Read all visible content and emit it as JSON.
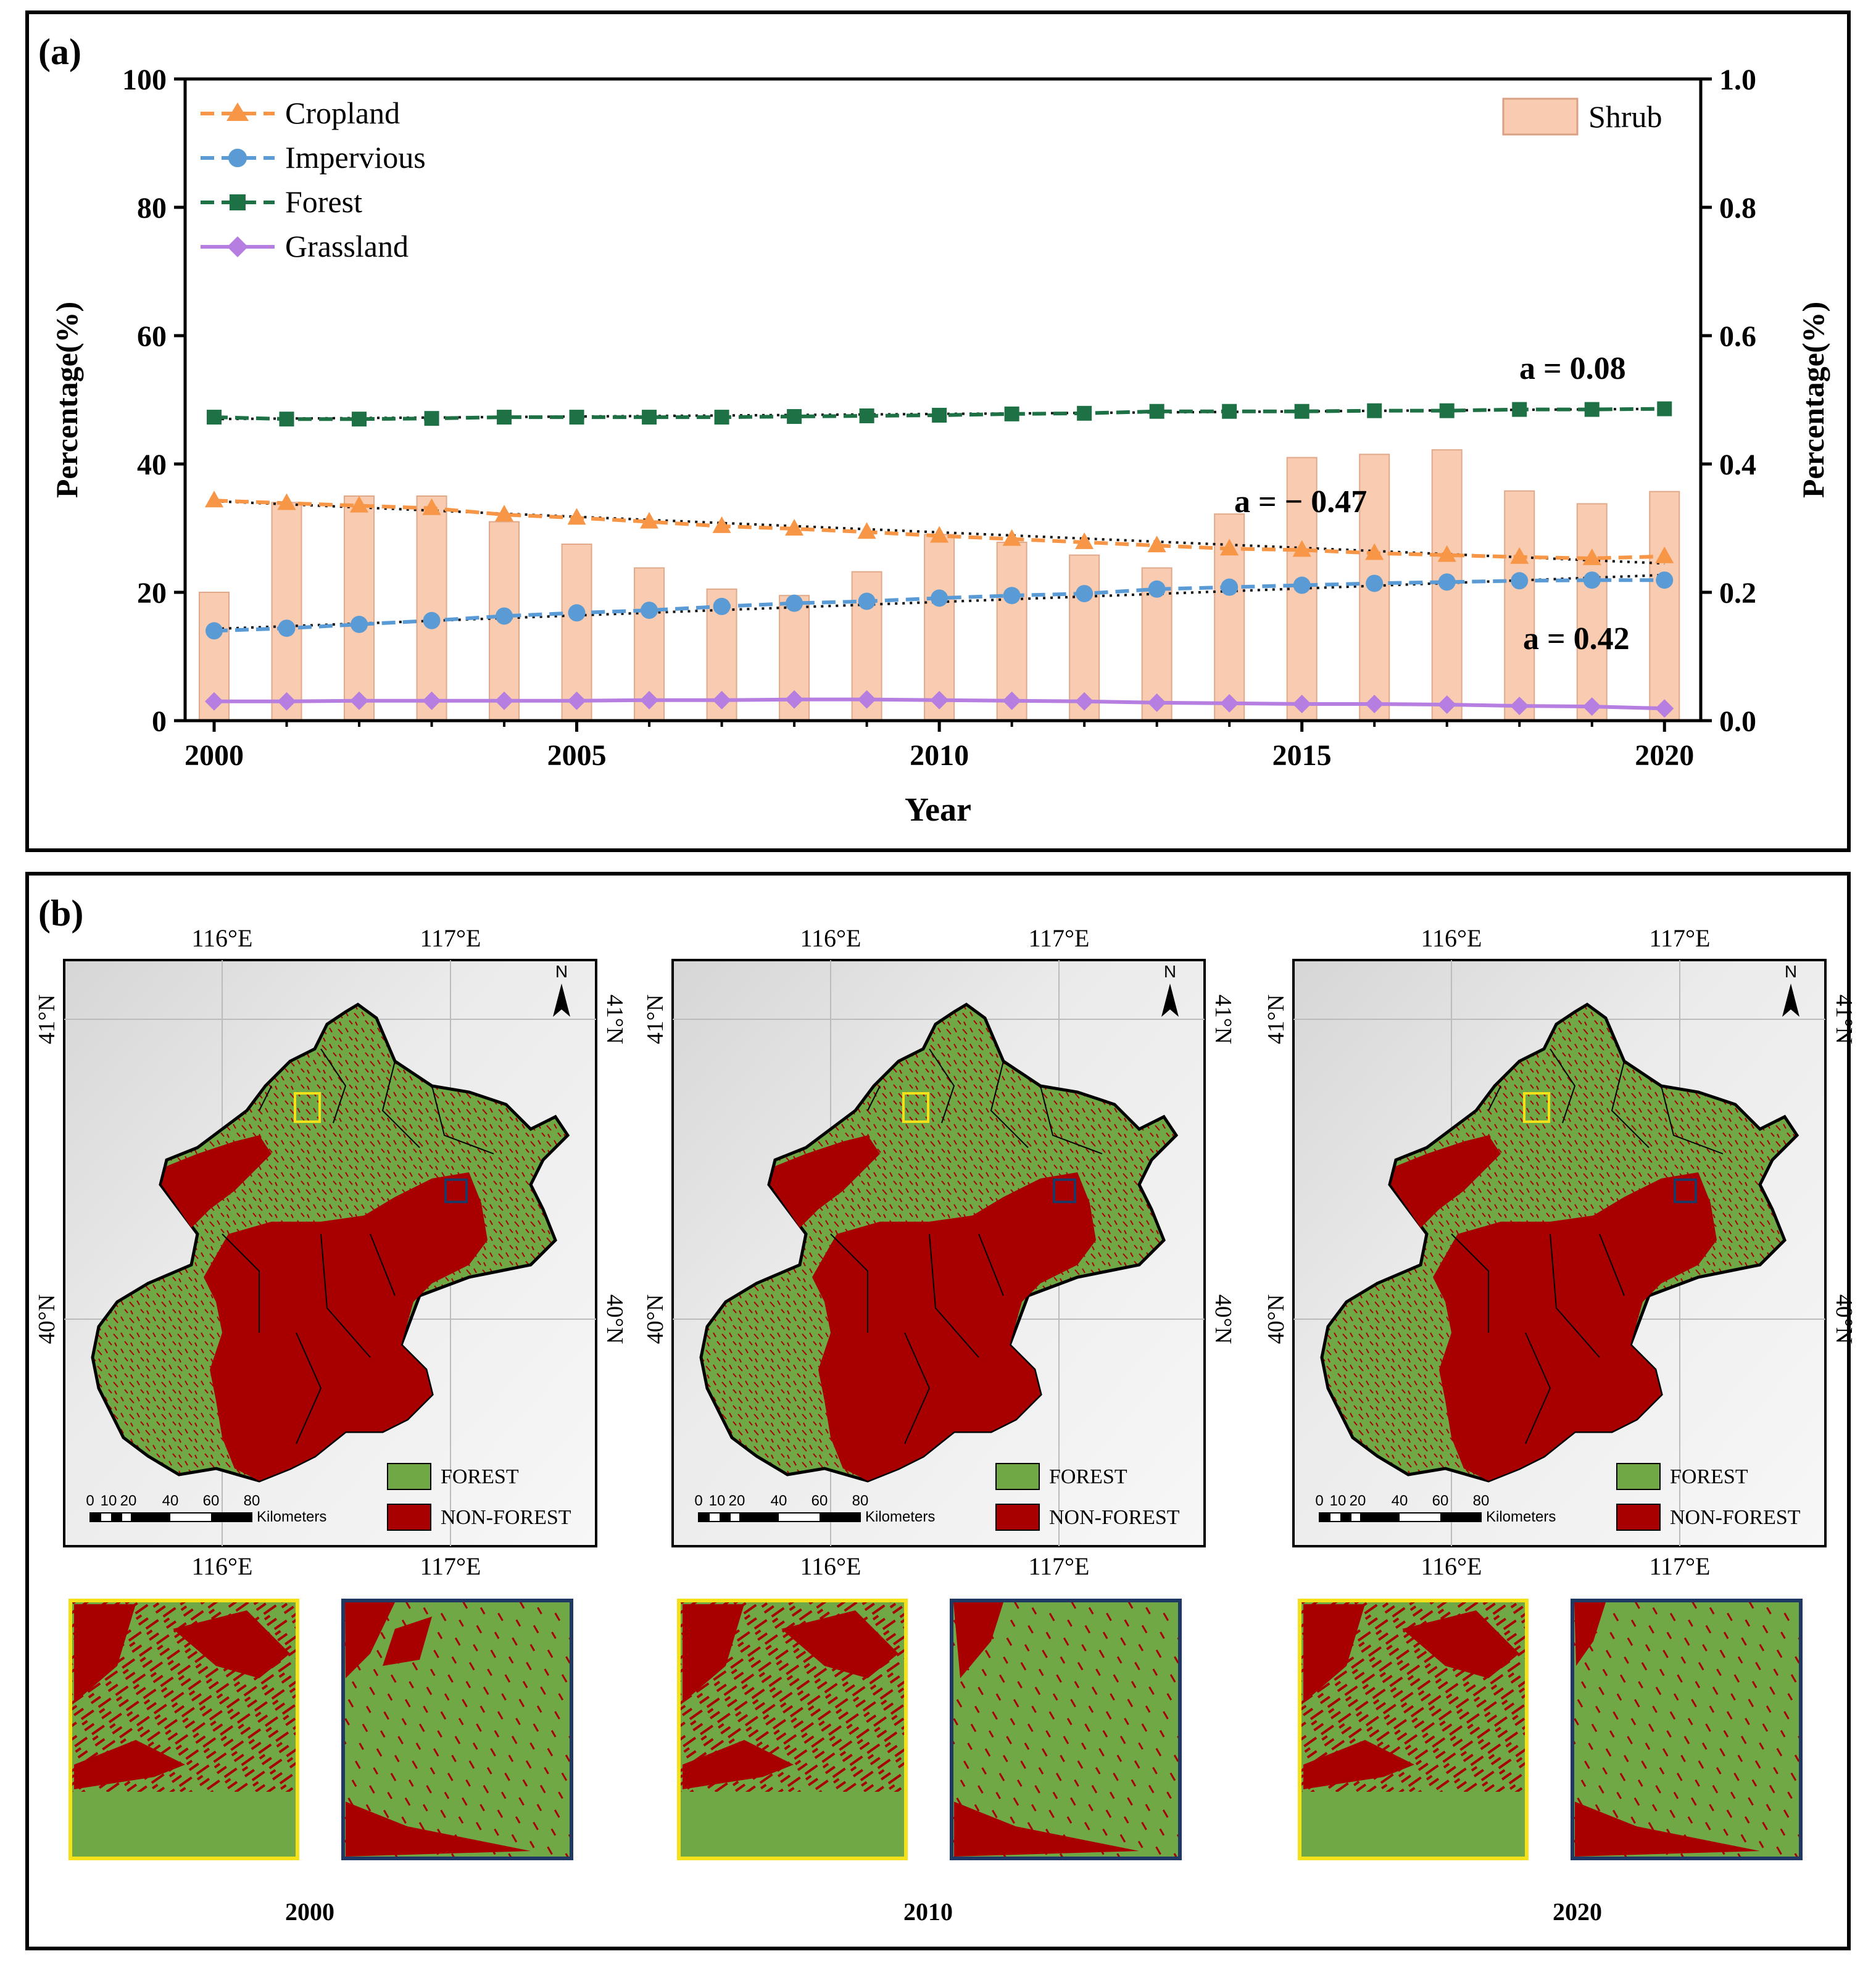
{
  "panel_a_label": "(a)",
  "panel_b_label": "(b)",
  "chart_data": {
    "type": "bar+line",
    "xlabel": "Year",
    "ylabel_left": "Percentage(%)",
    "ylabel_right": "Percentage(%)",
    "ylim_left": [
      0,
      100
    ],
    "ylim_right": [
      0,
      1.0
    ],
    "xlim": [
      1999.6,
      2020.5
    ],
    "x_ticks": [
      "2000",
      "2005",
      "2010",
      "2015",
      "2020"
    ],
    "y_ticks_left": [
      "0",
      "20",
      "40",
      "60",
      "80",
      "100"
    ],
    "y_ticks_right": [
      "0.0",
      "0.2",
      "0.4",
      "0.6",
      "0.8",
      "1.0"
    ],
    "x": [
      2000,
      2001,
      2002,
      2003,
      2004,
      2005,
      2006,
      2007,
      2008,
      2009,
      2010,
      2011,
      2012,
      2013,
      2014,
      2015,
      2016,
      2017,
      2018,
      2019,
      2020
    ],
    "bars": {
      "name": "Shrub",
      "axis": "right",
      "color": "#f9cbb0",
      "values": [
        0.2,
        0.34,
        0.35,
        0.35,
        0.31,
        0.275,
        0.238,
        0.205,
        0.195,
        0.232,
        0.29,
        0.278,
        0.258,
        0.238,
        0.322,
        0.41,
        0.415,
        0.422,
        0.358,
        0.338,
        0.357
      ]
    },
    "series": [
      {
        "name": "Cropland",
        "color": "#f79646",
        "marker": "triangle",
        "dash": true,
        "values": [
          34.3,
          33.9,
          33.5,
          33.1,
          32.1,
          31.6,
          31.0,
          30.3,
          29.9,
          29.4,
          28.8,
          28.3,
          27.8,
          27.3,
          26.8,
          26.6,
          26.1,
          25.8,
          25.5,
          25.3,
          25.6
        ]
      },
      {
        "name": "Impervious",
        "color": "#5b9bd5",
        "marker": "circle",
        "dash": true,
        "values": [
          14.0,
          14.4,
          15.0,
          15.6,
          16.3,
          16.8,
          17.2,
          17.8,
          18.3,
          18.6,
          19.1,
          19.5,
          19.8,
          20.5,
          20.8,
          21.1,
          21.4,
          21.6,
          21.8,
          21.9,
          21.9
        ]
      },
      {
        "name": "Forest",
        "color": "#1e7145",
        "marker": "square",
        "dash": true,
        "values": [
          47.3,
          47.0,
          47.0,
          47.1,
          47.3,
          47.3,
          47.3,
          47.3,
          47.4,
          47.5,
          47.6,
          47.8,
          47.9,
          48.2,
          48.2,
          48.2,
          48.3,
          48.3,
          48.5,
          48.5,
          48.6
        ]
      },
      {
        "name": "Grassland",
        "color": "#b57ee0",
        "marker": "diamond",
        "dash": false,
        "values": [
          3.0,
          3.0,
          3.1,
          3.1,
          3.1,
          3.1,
          3.2,
          3.2,
          3.3,
          3.3,
          3.2,
          3.1,
          3.0,
          2.8,
          2.7,
          2.6,
          2.6,
          2.5,
          2.3,
          2.2,
          1.9
        ]
      }
    ],
    "trendlines": [
      {
        "series": "Forest",
        "label": "a = 0.08",
        "start": 47.0,
        "end": 48.6
      },
      {
        "series": "Cropland",
        "label": "a = − 0.47",
        "start": 34.2,
        "end": 24.5
      },
      {
        "series": "Impervious",
        "label": "a = 0.42",
        "start": 14.3,
        "end": 22.7
      }
    ],
    "legend_left": [
      "Cropland",
      "Impervious",
      "Forest",
      "Grassland"
    ],
    "legend_right": [
      "Shrub"
    ]
  },
  "maps": {
    "lon_labels": [
      "116°E",
      "117°E"
    ],
    "lat_labels": [
      "41°N",
      "40°N"
    ],
    "north_label": "N",
    "scale_ticks": [
      "0",
      "10",
      "20",
      "40",
      "60",
      "80"
    ],
    "scale_unit": "Kilometers",
    "legend": {
      "forest": "FOREST",
      "nonforest": "NON-FOREST"
    },
    "colors": {
      "forest": "#70a845",
      "nonforest": "#a80000",
      "inset_a_border": "#f5e11a",
      "inset_b_border": "#1f3864"
    },
    "years": [
      "2000",
      "2010",
      "2020"
    ]
  }
}
